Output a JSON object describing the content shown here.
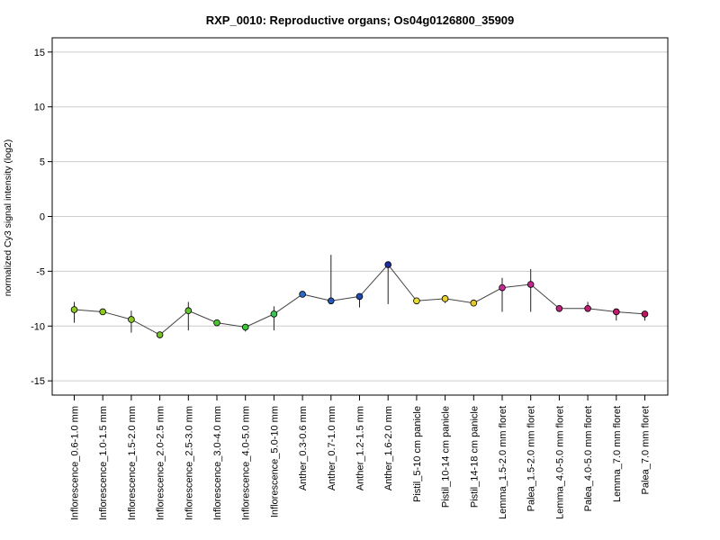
{
  "chart_data": {
    "type": "scatter",
    "title": "RXP_0010: Reproductive organs; Os04g0126800_35909",
    "xlabel": "",
    "ylabel": "normalized Cy3 signal intensity (log2)",
    "ylim": [
      -16.3,
      16.3
    ],
    "yticks": [
      "15",
      "10",
      "5",
      "0",
      "-5",
      "-10",
      "-15"
    ],
    "ytick_values": [
      15,
      10,
      5,
      0,
      -5,
      -10,
      -15
    ],
    "grid": true,
    "line_color": "#444444",
    "categories": [
      "Inflorescence_0.6-1.0 mm",
      "Inflorescence_1.0-1.5 mm",
      "Inflorescence_1.5-2.0 mm",
      "Inflorescence_2.0-2.5 mm",
      "Inflorescence_2.5-3.0 mm",
      "Inflorescence_3.0-4.0 mm",
      "Inflorescence_4.0-5.0 mm",
      "Inflorescence_5.0-10 mm",
      "Anther_0.3-0.6 mm",
      "Anther_0.7-1.0 mm",
      "Anther_1.2-1.5 mm",
      "Anther_1.6-2.0 mm",
      "Pistil_5-10 cm panicle",
      "Pistil_10-14 cm panicle",
      "Pistil_14-18 cm panicle",
      "Lemma_1.5-2.0 mm floret",
      "Palea_1.5-2.0 mm floret",
      "Lemma_4.0-5.0 mm floret",
      "Palea_4.0-5.0 mm floret",
      "Lemma_7.0 mm floret",
      "Palea_7.0 mm floret"
    ],
    "values": [
      -8.5,
      -8.7,
      -9.4,
      -10.8,
      -8.6,
      -9.7,
      -10.1,
      -8.9,
      -7.1,
      -7.7,
      -7.3,
      -4.4,
      -7.7,
      -7.5,
      -7.9,
      -6.5,
      -6.2,
      -8.4,
      -8.4,
      -8.7,
      -8.9
    ],
    "error_low": [
      -9.7,
      -8.7,
      -10.6,
      -10.8,
      -10.4,
      -9.7,
      -10.5,
      -10.4,
      -7.1,
      -8.0,
      -8.3,
      -8.0,
      -7.7,
      -7.9,
      -7.9,
      -8.7,
      -8.7,
      -8.4,
      -8.7,
      -9.5,
      -9.5
    ],
    "error_high": [
      -7.8,
      -8.7,
      -8.6,
      -10.8,
      -7.8,
      -9.7,
      -9.8,
      -8.2,
      -7.1,
      -3.5,
      -7.2,
      -4.4,
      -7.7,
      -7.2,
      -7.9,
      -5.6,
      -4.8,
      -8.4,
      -7.8,
      -8.7,
      -8.8
    ],
    "point_colors": [
      "#8fc824",
      "#8fc824",
      "#8fc824",
      "#74c224",
      "#5ec628",
      "#4cc42c",
      "#3ec43a",
      "#3ec456",
      "#2a6cc4",
      "#2458c0",
      "#1f48b4",
      "#1a2ea0",
      "#e8dc34",
      "#e6d232",
      "#e4c830",
      "#c82a96",
      "#c4268e",
      "#c0227e",
      "#c01e72",
      "#bc1c6a",
      "#b81a62"
    ]
  }
}
